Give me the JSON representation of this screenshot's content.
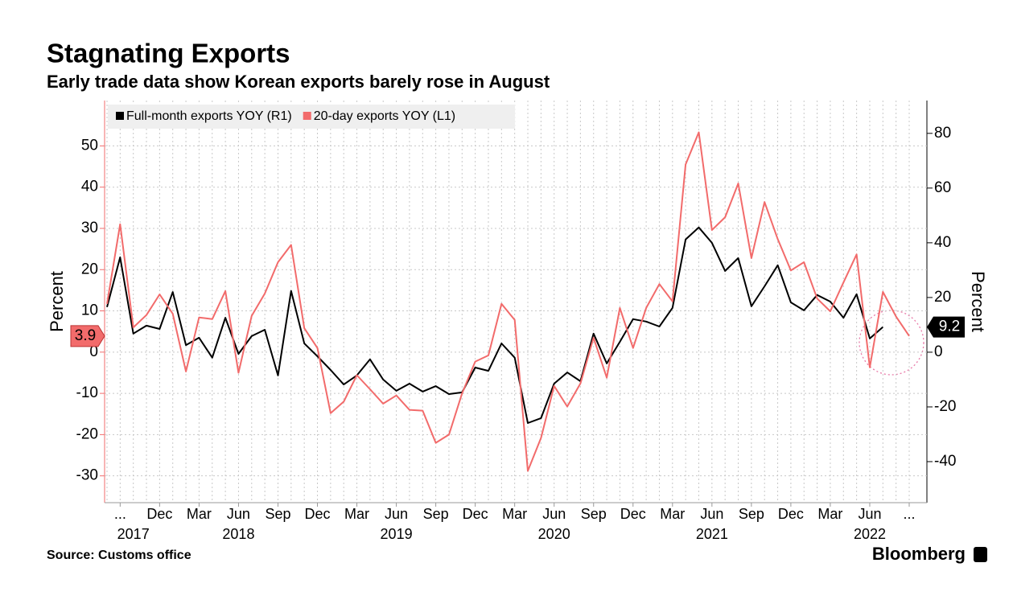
{
  "chart_data": {
    "type": "line",
    "title": "Stagnating Exports",
    "subtitle": "Early trade data show Korean exports barely rose in August",
    "y_label": "Percent",
    "y2_label": "Percent",
    "source": "Source: Customs office",
    "brand": "Bloomberg",
    "categories": [
      null,
      "...",
      null,
      null,
      "Dec",
      null,
      null,
      "Mar",
      null,
      null,
      "Jun",
      null,
      null,
      "Sep",
      null,
      null,
      "Dec",
      null,
      null,
      "Mar",
      null,
      null,
      "Jun",
      null,
      null,
      "Sep",
      null,
      null,
      "Dec",
      null,
      null,
      "Mar",
      null,
      null,
      "Jun",
      null,
      null,
      "Sep",
      null,
      null,
      "Dec",
      null,
      null,
      "Mar",
      null,
      null,
      "Jun",
      null,
      null,
      "Sep",
      null,
      null,
      "Dec",
      null,
      null,
      "Mar",
      null,
      null,
      "Jun",
      null,
      null,
      "..."
    ],
    "year_labels": [
      {
        "value": 2,
        "label": "2017"
      },
      {
        "value": 10,
        "label": "2018"
      },
      {
        "value": 22,
        "label": "2019"
      },
      {
        "value": 34,
        "label": "2020"
      },
      {
        "value": 46,
        "label": "2021"
      },
      {
        "value": 58,
        "label": "2022"
      }
    ],
    "series": [
      {
        "name": "Full-month exports YOY (R1)",
        "color": "#000000",
        "axis": "y2",
        "values": [
          16.5,
          34.7,
          6.8,
          9.7,
          8.5,
          22,
          2.6,
          5.3,
          -2,
          12.6,
          -0.6,
          5.9,
          8.2,
          -8.5,
          22.4,
          3.2,
          -1.5,
          -6.5,
          -11.8,
          -8.5,
          -2.6,
          -10,
          -14.1,
          -11.5,
          -14.4,
          -12.4,
          -15.3,
          -14.7,
          -5.6,
          -6.8,
          3.2,
          -2,
          -25.9,
          -24.1,
          -11.5,
          -7.4,
          -10.6,
          6.8,
          -4.1,
          3.8,
          12.1,
          11.2,
          9.4,
          16.2,
          41.2,
          45.6,
          40,
          29.7,
          34.4,
          16.8,
          24.1,
          31.8,
          18.2,
          15.3,
          20.9,
          18.5,
          12.6,
          21.2,
          5,
          9.2,
          null,
          null
        ]
      },
      {
        "name": "20-day exports YOY (L1)",
        "color": "#f26b6b",
        "axis": "y",
        "values": [
          11.7,
          31,
          6,
          9,
          14,
          9.3,
          -4.7,
          8.4,
          8,
          14.8,
          -5,
          8.8,
          14.2,
          21.8,
          26,
          5.8,
          1,
          -14.8,
          -12,
          -5.6,
          -9,
          -12.5,
          -10.5,
          -14,
          -14.2,
          -22,
          -20,
          -10,
          -2.3,
          -0.8,
          11.7,
          7.8,
          -28.8,
          -20.8,
          -8.2,
          -13.2,
          -7.6,
          3.5,
          -6.2,
          10.7,
          1,
          10.7,
          16.5,
          12.3,
          45.5,
          53.3,
          29.6,
          32.7,
          40.9,
          22.8,
          36.4,
          27.4,
          19.8,
          21.8,
          13,
          9.9,
          16.9,
          23.7,
          -3.7,
          14.6,
          8.6,
          3.9
        ]
      }
    ],
    "ylim": [
      -36.5,
      61
    ],
    "yticks": [
      -30,
      -20,
      -10,
      0,
      10,
      20,
      30,
      40,
      50
    ],
    "y2lim": [
      -55,
      92
    ],
    "y2ticks": [
      -40,
      -20,
      0,
      20,
      40,
      60,
      80
    ],
    "grid": true,
    "legend": "top-left"
  }
}
